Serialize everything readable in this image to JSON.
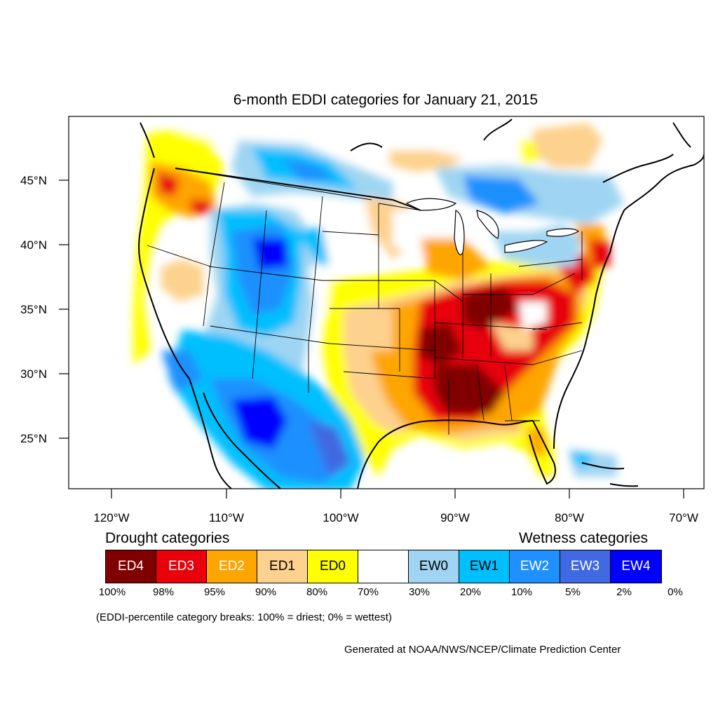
{
  "title": "6-month EDDI categories for January 21, 2015",
  "axes": {
    "lat_ticks": [
      "45°N",
      "40°N",
      "35°N",
      "30°N",
      "25°N"
    ],
    "lon_ticks": [
      "120°W",
      "110°W",
      "100°W",
      "90°W",
      "80°W",
      "70°W"
    ]
  },
  "legend": {
    "drought_heading": "Drought categories",
    "wetness_heading": "Wetness categories",
    "categories": [
      {
        "label": "ED4",
        "color": "#800000",
        "text_color": "#ffffff"
      },
      {
        "label": "ED3",
        "color": "#e8000b",
        "text_color": "#ffffff"
      },
      {
        "label": "ED2",
        "color": "#ffa500",
        "text_color": "#ffffff"
      },
      {
        "label": "ED1",
        "color": "#fdd18e",
        "text_color": "#000000"
      },
      {
        "label": "ED0",
        "color": "#ffff00",
        "text_color": "#000000"
      },
      {
        "label": "",
        "color": "#ffffff",
        "text_color": "#000000"
      },
      {
        "label": "EW0",
        "color": "#9fd5f2",
        "text_color": "#000000"
      },
      {
        "label": "EW1",
        "color": "#00bfff",
        "text_color": "#000000"
      },
      {
        "label": "EW2",
        "color": "#1e90ff",
        "text_color": "#ffffff"
      },
      {
        "label": "EW3",
        "color": "#4169e1",
        "text_color": "#ffffff"
      },
      {
        "label": "EW4",
        "color": "#0000ff",
        "text_color": "#ffffff"
      }
    ],
    "breaks": [
      "100%",
      "98%",
      "95%",
      "90%",
      "80%",
      "70%",
      "30%",
      "20%",
      "10%",
      "5%",
      "2%",
      "0%"
    ]
  },
  "note": "(EDDI-percentile category breaks: 100% = driest; 0% = wettest)",
  "credit": "Generated at NOAA/NWS/NCEP/Climate Prediction Center"
}
